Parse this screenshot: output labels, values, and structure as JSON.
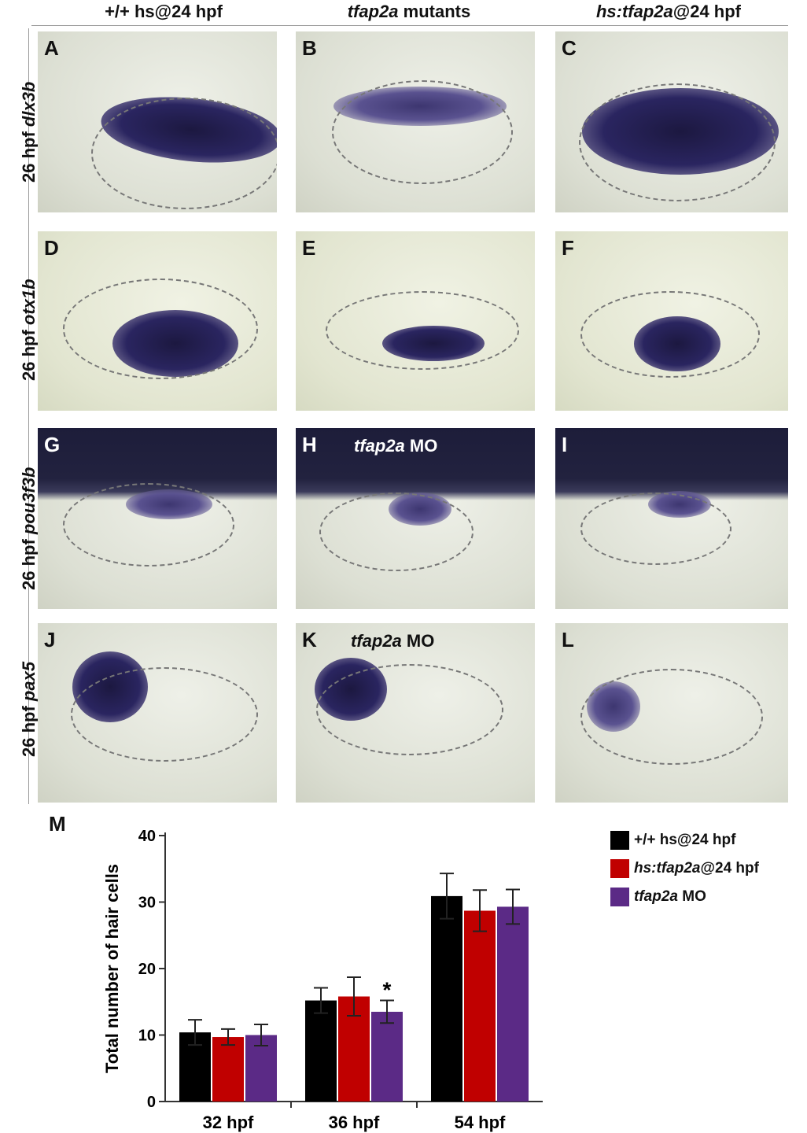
{
  "columns": [
    {
      "prefix": "+/+ hs@24 hpf",
      "italic": "",
      "suffix": ""
    },
    {
      "prefix": "",
      "italic": "tfap2a",
      "suffix": " mutants"
    },
    {
      "prefix": "",
      "italic": "hs:tfap2a",
      "suffix": "@24 hpf"
    }
  ],
  "rows": [
    {
      "prefix": "26 hpf ",
      "gene": "dlx3b"
    },
    {
      "prefix": "26 hpf ",
      "gene": "otx1b"
    },
    {
      "prefix": "26 hpf ",
      "gene": "pou3f3b"
    },
    {
      "prefix": "26 hpf ",
      "gene": "pax5"
    }
  ],
  "panels": {
    "A": "A",
    "B": "B",
    "C": "C",
    "D": "D",
    "E": "E",
    "F": "F",
    "G": "G",
    "H": "H",
    "I": "I",
    "J": "J",
    "K": "K",
    "L": "L"
  },
  "panel_notes": {
    "H": {
      "italic": "tfap2a",
      "suffix": " MO"
    },
    "K": {
      "italic": "tfap2a",
      "suffix": " MO"
    }
  },
  "chart_label": "M",
  "chart_data": {
    "type": "bar",
    "categories": [
      "32 hpf",
      "36 hpf",
      "54 hpf"
    ],
    "ylabel": "Total number of hair cells",
    "xlabel": "",
    "ylim": [
      0,
      40
    ],
    "yticks": [
      0,
      10,
      20,
      30,
      40
    ],
    "series": [
      {
        "name": "+/+ hs@24 hpf",
        "color": "#000000",
        "values": [
          10.4,
          15.2,
          30.9
        ],
        "errors": [
          1.9,
          1.9,
          3.4
        ]
      },
      {
        "name": "hs:tfap2a@24 hpf",
        "color": "#c00000",
        "values": [
          9.7,
          15.8,
          28.7
        ],
        "errors": [
          1.2,
          2.9,
          3.1
        ]
      },
      {
        "name": "tfap2a MO",
        "color": "#5b2a86",
        "values": [
          10.0,
          13.5,
          29.3
        ],
        "errors": [
          1.6,
          1.7,
          2.6
        ]
      }
    ],
    "annotations": [
      {
        "category": "36 hpf",
        "series": "tfap2a MO",
        "text": "*"
      }
    ]
  },
  "legend": [
    {
      "prefix": "+/+ hs@24 hpf",
      "italic": "",
      "suffix": "",
      "color": "#000000"
    },
    {
      "prefix": "",
      "italic": "hs:tfap2a",
      "suffix": "@24 hpf",
      "color": "#c00000"
    },
    {
      "prefix": "",
      "italic": "tfap2a",
      "suffix": " MO",
      "color": "#5b2a86"
    }
  ]
}
